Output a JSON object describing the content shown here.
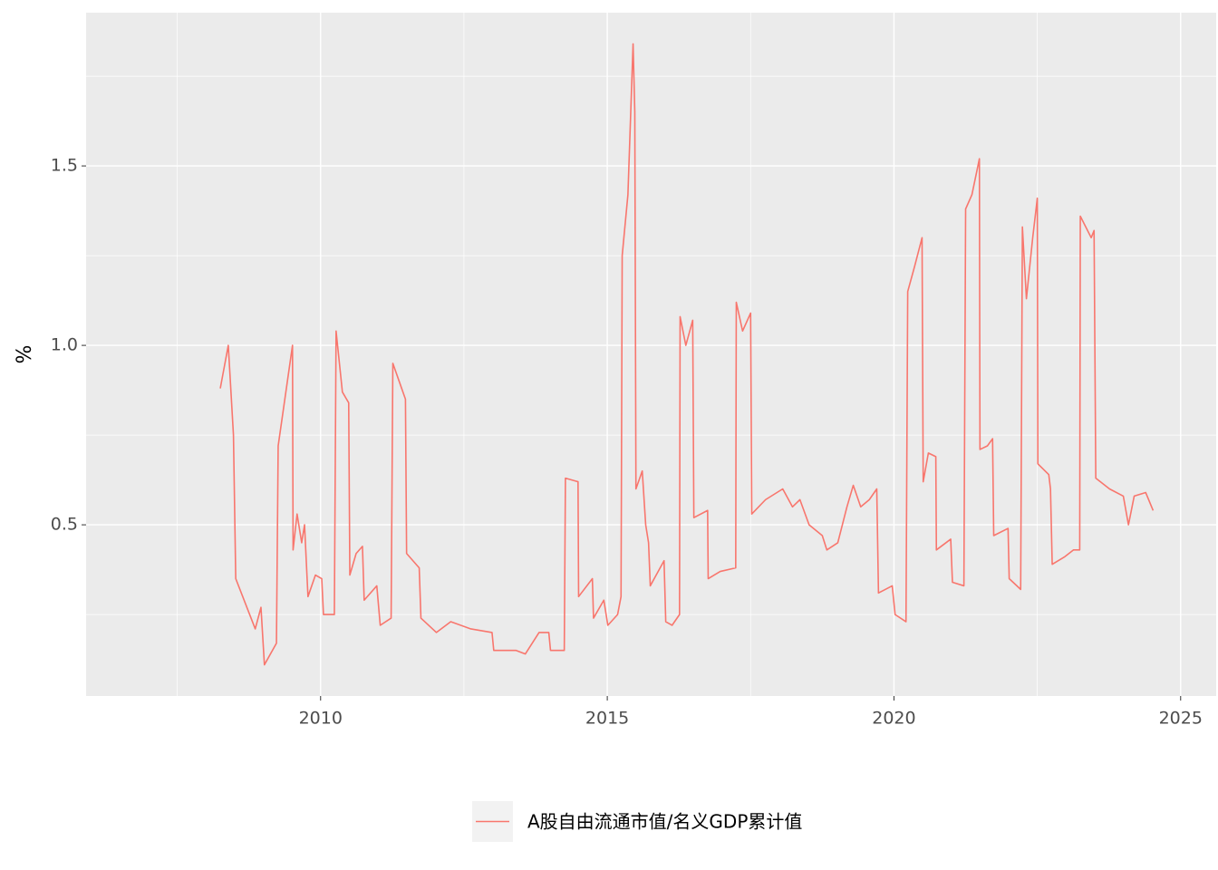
{
  "chart_data": {
    "type": "line",
    "y_label": "%",
    "x": [
      2008.25,
      2008.39,
      2008.48,
      2008.52,
      2008.86,
      2008.96,
      2009.02,
      2009.23,
      2009.26,
      2009.51,
      2009.52,
      2009.59,
      2009.67,
      2009.72,
      2009.78,
      2009.91,
      2010.02,
      2010.05,
      2010.24,
      2010.27,
      2010.38,
      2010.49,
      2010.51,
      2010.62,
      2010.73,
      2010.76,
      2010.98,
      2011.04,
      2011.23,
      2011.26,
      2011.37,
      2011.48,
      2011.5,
      2011.72,
      2011.75,
      2012.02,
      2012.27,
      2012.62,
      2012.99,
      2013.02,
      2013.41,
      2013.57,
      2013.81,
      2013.98,
      2014.01,
      2014.25,
      2014.27,
      2014.49,
      2014.5,
      2014.74,
      2014.76,
      2014.94,
      2015.01,
      2015.18,
      2015.24,
      2015.26,
      2015.36,
      2015.45,
      2015.48,
      2015.5,
      2015.61,
      2015.67,
      2015.72,
      2015.75,
      2015.99,
      2016.02,
      2016.13,
      2016.26,
      2016.27,
      2016.37,
      2016.49,
      2016.51,
      2016.75,
      2016.76,
      2016.97,
      2017.24,
      2017.25,
      2017.36,
      2017.5,
      2017.52,
      2017.76,
      2018.06,
      2018.23,
      2018.36,
      2018.52,
      2018.75,
      2018.83,
      2019.02,
      2019.18,
      2019.29,
      2019.42,
      2019.57,
      2019.7,
      2019.73,
      2019.97,
      2020.02,
      2020.21,
      2020.24,
      2020.36,
      2020.49,
      2020.51,
      2020.6,
      2020.73,
      2020.74,
      2020.99,
      2021.02,
      2021.22,
      2021.25,
      2021.36,
      2021.49,
      2021.5,
      2021.63,
      2021.72,
      2021.74,
      2021.99,
      2022.01,
      2022.21,
      2022.24,
      2022.31,
      2022.42,
      2022.5,
      2022.51,
      2022.7,
      2022.73,
      2022.76,
      2022.97,
      2023.13,
      2023.24,
      2023.25,
      2023.44,
      2023.49,
      2023.52,
      2023.76,
      2024.0,
      2024.09,
      2024.19,
      2024.39,
      2024.52
    ],
    "series": [
      {
        "name": "A股自由流通市值/名义GDP累计值",
        "color": "#F8766D",
        "values": [
          0.88,
          1.0,
          0.75,
          0.35,
          0.21,
          0.27,
          0.11,
          0.17,
          0.72,
          1.0,
          0.43,
          0.53,
          0.45,
          0.5,
          0.3,
          0.36,
          0.35,
          0.25,
          0.25,
          1.04,
          0.87,
          0.84,
          0.36,
          0.42,
          0.44,
          0.29,
          0.33,
          0.22,
          0.24,
          0.95,
          0.9,
          0.85,
          0.42,
          0.38,
          0.24,
          0.2,
          0.23,
          0.21,
          0.2,
          0.15,
          0.15,
          0.14,
          0.2,
          0.2,
          0.15,
          0.15,
          0.63,
          0.62,
          0.3,
          0.35,
          0.24,
          0.29,
          0.22,
          0.25,
          0.3,
          1.25,
          1.42,
          1.84,
          1.65,
          0.6,
          0.65,
          0.5,
          0.45,
          0.33,
          0.4,
          0.23,
          0.22,
          0.25,
          1.08,
          1.0,
          1.07,
          0.52,
          0.54,
          0.35,
          0.37,
          0.38,
          1.12,
          1.04,
          1.09,
          0.53,
          0.57,
          0.6,
          0.55,
          0.57,
          0.5,
          0.47,
          0.43,
          0.45,
          0.55,
          0.61,
          0.55,
          0.57,
          0.6,
          0.31,
          0.33,
          0.25,
          0.23,
          1.15,
          1.22,
          1.3,
          0.62,
          0.7,
          0.69,
          0.43,
          0.46,
          0.34,
          0.33,
          1.38,
          1.42,
          1.52,
          0.71,
          0.72,
          0.74,
          0.47,
          0.49,
          0.35,
          0.32,
          1.33,
          1.13,
          1.3,
          1.41,
          0.67,
          0.64,
          0.6,
          0.39,
          0.41,
          0.43,
          0.43,
          1.36,
          1.3,
          1.32,
          0.63,
          0.6,
          0.58,
          0.5,
          0.58,
          0.59,
          0.54
        ]
      }
    ],
    "xlim": [
      2005.91,
      2025.62
    ],
    "ylim": [
      0.023,
      1.927
    ],
    "xticks": [
      2010,
      2015,
      2020,
      2025
    ],
    "yticks": [
      0.5,
      {
        "value": 1.0,
        "label": "1.0"
      },
      1.5
    ],
    "x_minor_ticks": [
      2007.5,
      2012.5,
      2017.5,
      2022.5
    ],
    "y_minor_ticks": [
      0.25,
      0.75,
      1.25,
      1.75
    ],
    "grid": true,
    "legend_position": "bottom"
  }
}
